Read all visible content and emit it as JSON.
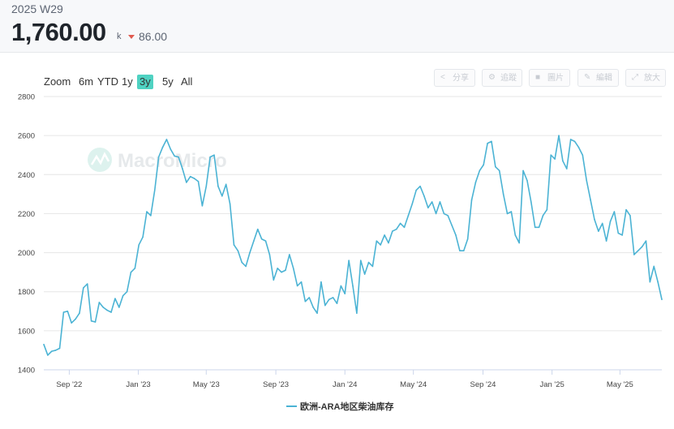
{
  "header": {
    "period": "2025 W29",
    "value": "1,760.00",
    "unit": "k",
    "change": "86.00",
    "change_direction": "down",
    "change_color": "#e05a4f"
  },
  "zoom": {
    "label": "Zoom",
    "options": [
      "6m",
      "YTD",
      "1y",
      "3y",
      "5y",
      "All"
    ],
    "selected": "3y"
  },
  "toolbar": {
    "buttons": [
      {
        "label": "分享",
        "icon": "share-icon"
      },
      {
        "label": "追蹤",
        "icon": "track-icon"
      },
      {
        "label": "圖片",
        "icon": "image-icon"
      },
      {
        "label": "編輯",
        "icon": "pencil-icon"
      },
      {
        "label": "放大",
        "icon": "expand-icon"
      }
    ]
  },
  "watermark": "MacroMicro",
  "chart_data": {
    "type": "line",
    "title": "",
    "xlabel": "",
    "ylabel": "",
    "ylim": [
      1400,
      2800
    ],
    "yticks": [
      1400,
      1600,
      1800,
      2000,
      2200,
      2400,
      2600,
      2800
    ],
    "xticks": [
      "Sep '22",
      "Jan '23",
      "May '23",
      "Sep '23",
      "Jan '24",
      "May '24",
      "Sep '24",
      "Jan '25",
      "May '25"
    ],
    "grid": true,
    "legend": "bottom-center",
    "series": [
      {
        "name": "欧洲-ARA地区柴油库存",
        "color": "#4bb3d4",
        "x_start": "2022-07-18",
        "x_step_days": 7,
        "values": [
          1530,
          1475,
          1495,
          1500,
          1510,
          1695,
          1700,
          1640,
          1660,
          1690,
          1820,
          1840,
          1650,
          1645,
          1745,
          1720,
          1705,
          1695,
          1765,
          1720,
          1780,
          1800,
          1900,
          1920,
          2040,
          2080,
          2210,
          2190,
          2320,
          2490,
          2540,
          2580,
          2530,
          2495,
          2490,
          2430,
          2360,
          2390,
          2380,
          2365,
          2240,
          2340,
          2490,
          2500,
          2340,
          2290,
          2350,
          2250,
          2040,
          2010,
          1950,
          1930,
          2000,
          2060,
          2120,
          2070,
          2060,
          1990,
          1860,
          1920,
          1900,
          1910,
          1990,
          1920,
          1830,
          1850,
          1750,
          1770,
          1720,
          1690,
          1850,
          1730,
          1760,
          1770,
          1740,
          1830,
          1790,
          1960,
          1830,
          1690,
          1960,
          1890,
          1950,
          1930,
          2060,
          2040,
          2090,
          2050,
          2110,
          2120,
          2150,
          2130,
          2190,
          2250,
          2320,
          2340,
          2290,
          2230,
          2260,
          2200,
          2260,
          2200,
          2190,
          2140,
          2090,
          2010,
          2010,
          2070,
          2270,
          2360,
          2420,
          2450,
          2560,
          2570,
          2440,
          2420,
          2300,
          2200,
          2210,
          2090,
          2050,
          2420,
          2370,
          2260,
          2130,
          2130,
          2190,
          2220,
          2500,
          2480,
          2600,
          2470,
          2430,
          2580,
          2570,
          2540,
          2500,
          2370,
          2270,
          2170,
          2110,
          2150,
          2060,
          2160,
          2210,
          2100,
          2090,
          2220,
          2190,
          1990,
          2010,
          2030,
          2060,
          1850,
          1930,
          1850,
          1760
        ]
      }
    ]
  }
}
